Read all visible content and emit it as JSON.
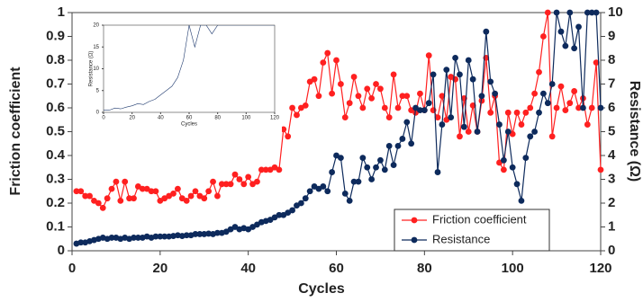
{
  "chart_data": [
    {
      "type": "line",
      "xlabel": "Cycles",
      "ylabel": "Friction coefficient",
      "y2label": "Resistance (Ω)",
      "x": [
        1,
        2,
        3,
        4,
        5,
        6,
        7,
        8,
        9,
        10,
        11,
        12,
        13,
        14,
        15,
        16,
        17,
        18,
        19,
        20,
        21,
        22,
        23,
        24,
        25,
        26,
        27,
        28,
        29,
        30,
        31,
        32,
        33,
        34,
        35,
        36,
        37,
        38,
        39,
        40,
        41,
        42,
        43,
        44,
        45,
        46,
        47,
        48,
        49,
        50,
        51,
        52,
        53,
        54,
        55,
        56,
        57,
        58,
        59,
        60,
        61,
        62,
        63,
        64,
        65,
        66,
        67,
        68,
        69,
        70,
        71,
        72,
        73,
        74,
        75,
        76,
        77,
        78,
        79,
        80,
        81,
        82,
        83,
        84,
        85,
        86,
        87,
        88,
        89,
        90,
        91,
        92,
        93,
        94,
        95,
        96,
        97,
        98,
        99,
        100,
        101,
        102,
        103,
        104,
        105,
        106,
        107,
        108,
        109,
        110,
        111,
        112,
        113,
        114,
        115,
        116,
        117,
        118,
        119,
        120
      ],
      "xlim": [
        0,
        120
      ],
      "xticks": [
        0,
        20,
        40,
        60,
        80,
        100,
        120
      ],
      "ylim": [
        0,
        1
      ],
      "yticks": [
        0,
        0.1,
        0.2,
        0.3,
        0.4,
        0.5,
        0.6,
        0.7,
        0.8,
        0.9,
        1
      ],
      "y2lim": [
        0,
        10
      ],
      "y2ticks": [
        0,
        1,
        2,
        3,
        4,
        5,
        6,
        7,
        8,
        9,
        10
      ],
      "legend": "lower-right",
      "series": [
        {
          "name": "Friction coefficient",
          "color": "#ff2020",
          "values": [
            0.25,
            0.25,
            0.23,
            0.23,
            0.21,
            0.2,
            0.18,
            0.22,
            0.26,
            0.29,
            0.21,
            0.29,
            0.22,
            0.22,
            0.27,
            0.26,
            0.26,
            0.25,
            0.25,
            0.21,
            0.22,
            0.23,
            0.24,
            0.26,
            0.22,
            0.21,
            0.23,
            0.25,
            0.23,
            0.22,
            0.25,
            0.29,
            0.23,
            0.28,
            0.28,
            0.28,
            0.32,
            0.3,
            0.28,
            0.31,
            0.28,
            0.29,
            0.34,
            0.34,
            0.34,
            0.35,
            0.34,
            0.51,
            0.48,
            0.6,
            0.57,
            0.6,
            0.61,
            0.71,
            0.72,
            0.65,
            0.79,
            0.83,
            0.66,
            0.8,
            0.7,
            0.56,
            0.62,
            0.73,
            0.65,
            0.6,
            0.68,
            0.64,
            0.7,
            0.68,
            0.6,
            0.56,
            0.74,
            0.6,
            0.65,
            0.65,
            0.59,
            0.58,
            0.66,
            0.59,
            0.82,
            0.59,
            0.56,
            0.65,
            0.55,
            0.73,
            0.72,
            0.48,
            0.64,
            0.5,
            0.61,
            0.5,
            0.63,
            0.81,
            0.58,
            0.65,
            0.37,
            0.34,
            0.58,
            0.49,
            0.58,
            0.53,
            0.58,
            0.6,
            0.66,
            0.75,
            0.9,
            1,
            0.48,
            0.6,
            0.69,
            0.59,
            0.62,
            0.67,
            0.6,
            0.64,
            0.53,
            0.6,
            0.79,
            0.34
          ]
        },
        {
          "name": "Resistance",
          "color": "#0d2a5c",
          "axis": "y2",
          "values": [
            0.3,
            0.35,
            0.35,
            0.4,
            0.45,
            0.5,
            0.55,
            0.5,
            0.55,
            0.55,
            0.5,
            0.55,
            0.5,
            0.55,
            0.55,
            0.55,
            0.6,
            0.55,
            0.6,
            0.6,
            0.6,
            0.6,
            0.62,
            0.65,
            0.62,
            0.65,
            0.65,
            0.7,
            0.7,
            0.7,
            0.72,
            0.7,
            0.75,
            0.75,
            0.8,
            0.9,
            1.0,
            0.9,
            0.95,
            0.9,
            1.0,
            1.1,
            1.2,
            1.25,
            1.3,
            1.4,
            1.5,
            1.5,
            1.6,
            1.7,
            1.9,
            2.0,
            2.2,
            2.5,
            2.7,
            2.6,
            2.7,
            2.5,
            3.3,
            4.0,
            3.9,
            2.4,
            2.1,
            2.9,
            2.9,
            3.9,
            3.5,
            3.0,
            3.5,
            3.8,
            3.4,
            4.4,
            3.6,
            4.4,
            4.7,
            5.4,
            4.5,
            6.0,
            5.9,
            5.9,
            6.2,
            7.4,
            3.3,
            5.3,
            7.6,
            5.6,
            8.1,
            7.4,
            5.2,
            8.0,
            7.2,
            5.0,
            6.5,
            9.2,
            7.1,
            6.6,
            5.3,
            3.8,
            5.0,
            3.5,
            2.8,
            2.1,
            3.9,
            4.8,
            5.0,
            5.8,
            6.6,
            6.2,
            7.0,
            10,
            9.2,
            8.6,
            10,
            8.5,
            9.4,
            6.0,
            10,
            10,
            10,
            6.0
          ]
        }
      ]
    },
    {
      "type": "line",
      "xlabel": "Cycles",
      "ylabel": "Resistance (Ω)",
      "x": [
        0,
        4,
        8,
        12,
        16,
        20,
        24,
        28,
        32,
        36,
        40,
        44,
        48,
        52,
        56,
        60,
        64,
        68,
        72,
        76,
        80,
        84,
        88,
        92,
        96,
        100,
        104,
        108,
        112,
        116,
        120
      ],
      "xlim": [
        0,
        120
      ],
      "xticks": [
        0,
        20,
        40,
        60,
        80,
        100,
        120
      ],
      "ylim": [
        0,
        20
      ],
      "yticks": [
        0,
        5,
        10,
        15,
        20
      ],
      "series": [
        {
          "name": "Resistance",
          "color": "#1f3a6e",
          "values": [
            0.5,
            0.5,
            1,
            0.8,
            1.2,
            1.5,
            2,
            1.8,
            2.5,
            3,
            4,
            5,
            6,
            8,
            12,
            20,
            15,
            20,
            20,
            18,
            20,
            20,
            20,
            20,
            20,
            20,
            20,
            20,
            20,
            20,
            20
          ]
        }
      ]
    }
  ]
}
